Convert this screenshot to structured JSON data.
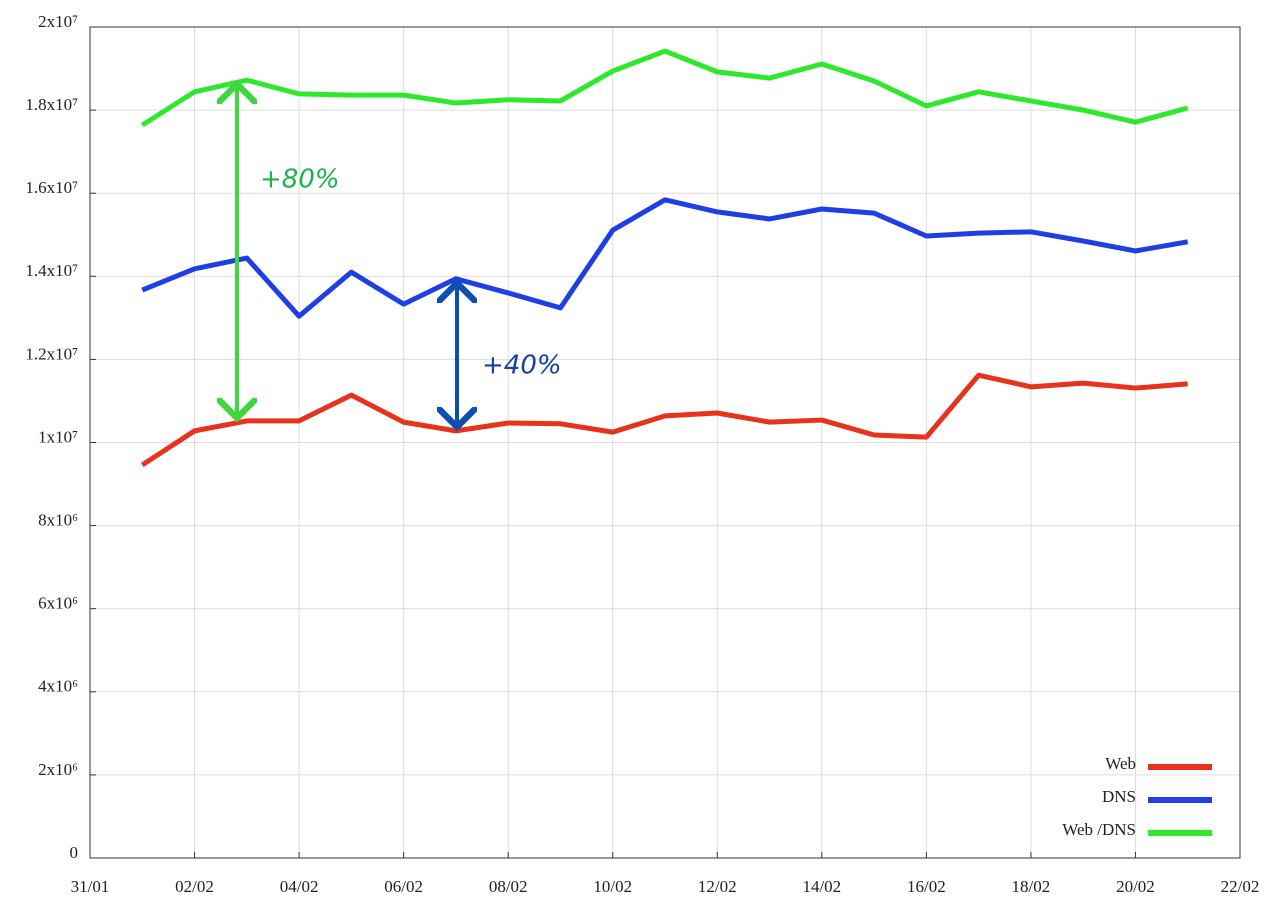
{
  "chart_data": {
    "type": "line",
    "xlim": [
      0,
      22
    ],
    "xticks": [
      {
        "value": 0,
        "label": "31/01"
      },
      {
        "value": 2,
        "label": "02/02"
      },
      {
        "value": 4,
        "label": "04/02"
      },
      {
        "value": 6,
        "label": "06/02"
      },
      {
        "value": 8,
        "label": "08/02"
      },
      {
        "value": 10,
        "label": "10/02"
      },
      {
        "value": 12,
        "label": "12/02"
      },
      {
        "value": 14,
        "label": "14/02"
      },
      {
        "value": 16,
        "label": "16/02"
      },
      {
        "value": 18,
        "label": "18/02"
      },
      {
        "value": 20,
        "label": "20/02"
      },
      {
        "value": 22,
        "label": "22/02"
      }
    ],
    "ylim": [
      0,
      20000000
    ],
    "yticks": [
      0,
      {
        "value": 2000000,
        "label": "2x10⁶"
      },
      {
        "value": 4000000,
        "label": "4x10⁶"
      },
      {
        "value": 6000000,
        "label": "6x10⁶"
      },
      {
        "value": 8000000,
        "label": "8x10⁶"
      },
      {
        "value": 10000000,
        "label": "1x10⁷"
      },
      {
        "value": 12000000,
        "label": "1.2x10⁷"
      },
      {
        "value": 14000000,
        "label": "1.4x10⁷"
      },
      {
        "value": 16000000,
        "label": "1.6x10⁷"
      },
      {
        "value": 18000000,
        "label": "1.8x10⁷"
      },
      {
        "value": 20000000,
        "label": "2x10⁷"
      }
    ],
    "grid": true,
    "legend": "lower right",
    "x": [
      1,
      2,
      3,
      4,
      5,
      6,
      7,
      8,
      9,
      10,
      11,
      12,
      13,
      14,
      15,
      16,
      17,
      18,
      19,
      20,
      21
    ],
    "series": [
      {
        "name": "Web",
        "color": "#e8321c",
        "values": [
          9460000,
          10280000,
          10520000,
          10520000,
          11140000,
          10490000,
          10280000,
          10470000,
          10450000,
          10250000,
          10640000,
          10710000,
          10490000,
          10540000,
          10180000,
          10130000,
          11620000,
          11340000,
          11430000,
          11310000,
          11410000
        ]
      },
      {
        "name": "DNS",
        "color": "#1f3fe6",
        "values": [
          13670000,
          14180000,
          14440000,
          13040000,
          14100000,
          13330000,
          13940000,
          13600000,
          13240000,
          15110000,
          15840000,
          15550000,
          15380000,
          15620000,
          15520000,
          14970000,
          15040000,
          15070000,
          14850000,
          14610000,
          14830000
        ]
      },
      {
        "name": "Web /DNS",
        "color": "#2ee82e",
        "values": [
          17640000,
          18440000,
          18720000,
          18390000,
          18360000,
          18360000,
          18170000,
          18250000,
          18220000,
          18940000,
          19420000,
          18920000,
          18770000,
          19110000,
          18700000,
          18100000,
          18440000,
          18220000,
          18000000,
          17710000,
          18050000
        ]
      }
    ],
    "annotations": [
      "+80%",
      "+40%"
    ]
  }
}
